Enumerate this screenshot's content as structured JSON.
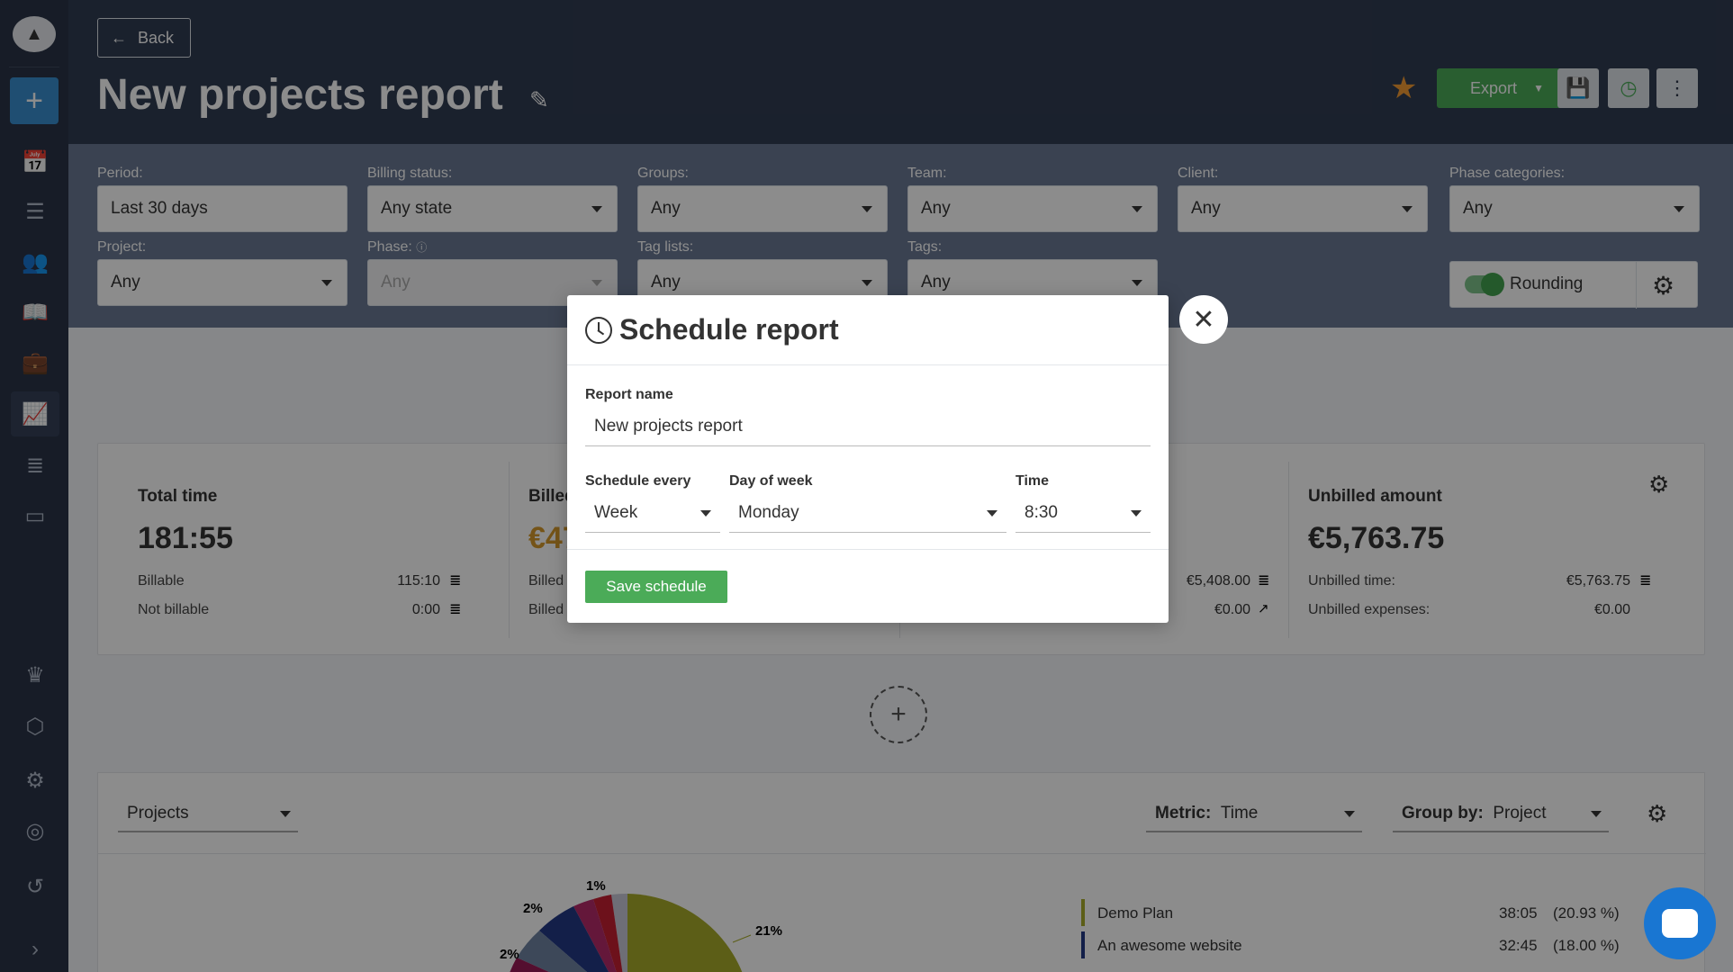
{
  "header": {
    "back_label": "Back",
    "title": "New projects report",
    "export_label": "Export"
  },
  "filters": [
    {
      "label": "Period:",
      "value": "Last 30 days"
    },
    {
      "label": "Billing status:",
      "value": "Any state"
    },
    {
      "label": "Groups:",
      "value": "Any"
    },
    {
      "label": "Team:",
      "value": "Any"
    },
    {
      "label": "Client:",
      "value": "Any"
    },
    {
      "label": "Phase categories:",
      "value": "Any"
    },
    {
      "label": "Project:",
      "value": "Any"
    },
    {
      "label": "Phase:",
      "value": "Any"
    },
    {
      "label": "Tag lists:",
      "value": "Any"
    },
    {
      "label": "Tags:",
      "value": "Any"
    }
  ],
  "rounding_label": "Rounding",
  "kpis": {
    "total": {
      "title": "Total time",
      "value": "181:55",
      "rows": [
        {
          "label": "Billable",
          "value": "115:10"
        },
        {
          "label": "Not billable",
          "value": "0:00"
        }
      ]
    },
    "billed": {
      "title": "Billed",
      "value": "€47",
      "rows": [
        {
          "label": "Billed"
        },
        {
          "label": "Billed"
        }
      ]
    },
    "third": {
      "rows": [
        {
          "value": "€5,408.00"
        },
        {
          "value": "€0.00"
        }
      ]
    },
    "unbilled": {
      "title": "Unbilled amount",
      "value": "€5,763.75",
      "rows": [
        {
          "label": "Unbilled time:",
          "value": "€5,763.75"
        },
        {
          "label": "Unbilled expenses:",
          "value": "€0.00"
        }
      ]
    }
  },
  "chart_controls": {
    "selector": "Projects",
    "metric_label": "Metric:",
    "metric_value": "Time",
    "group_label": "Group by:",
    "group_value": "Project"
  },
  "chart_data": {
    "type": "pie",
    "slice_labels": [
      "1%",
      "2%",
      "2%",
      "21%"
    ],
    "legend": [
      {
        "name": "Demo Plan",
        "time": "38:05",
        "pct": "(20.93 %)",
        "color": "#a8ab2a"
      },
      {
        "name": "An awesome website",
        "time": "32:45",
        "pct": "(18.00 %)",
        "color": "#243a86"
      }
    ]
  },
  "modal": {
    "title": "Schedule report",
    "report_name_label": "Report name",
    "report_name_value": "New projects report",
    "schedule_every_label": "Schedule every",
    "schedule_every_value": "Week",
    "day_label": "Day of week",
    "day_value": "Monday",
    "time_label": "Time",
    "time_value": "8:30",
    "save_label": "Save schedule"
  }
}
